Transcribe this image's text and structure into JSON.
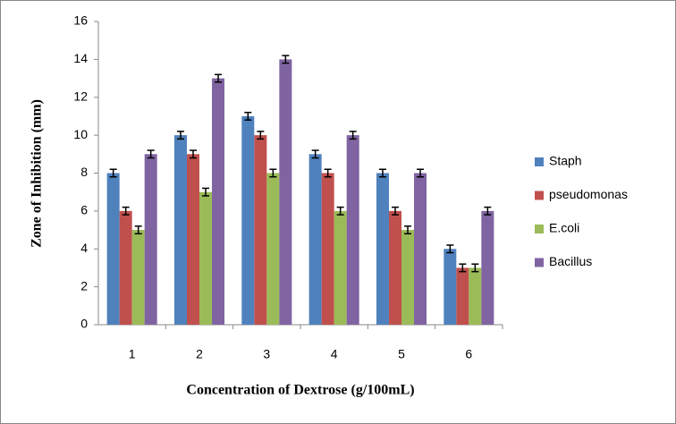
{
  "chart_data": {
    "type": "bar",
    "x_label": "Concentration of Dextrose (g/100mL)",
    "y_label": "Zone of Inhibition (mm)",
    "categories": [
      "1",
      "2",
      "3",
      "4",
      "5",
      "6"
    ],
    "series": [
      {
        "name": "Staph",
        "color": "#4f81bd",
        "values": [
          8,
          10,
          11,
          9,
          8,
          4
        ],
        "errors": [
          0.2,
          0.2,
          0.2,
          0.2,
          0.2,
          0.2
        ]
      },
      {
        "name": "pseudomonas",
        "color": "#c0504d",
        "values": [
          6,
          9,
          10,
          8,
          6,
          3
        ],
        "errors": [
          0.2,
          0.2,
          0.2,
          0.2,
          0.2,
          0.2
        ]
      },
      {
        "name": "E.coli",
        "color": "#9bbb59",
        "values": [
          5,
          7,
          8,
          6,
          5,
          3
        ],
        "errors": [
          0.2,
          0.2,
          0.2,
          0.2,
          0.2,
          0.2
        ]
      },
      {
        "name": "Bacillus",
        "color": "#8064a2",
        "values": [
          9,
          13,
          14,
          10,
          8,
          6
        ],
        "errors": [
          0.2,
          0.2,
          0.2,
          0.2,
          0.2,
          0.2
        ]
      }
    ],
    "ylim": [
      0,
      16
    ],
    "yticks": [
      0,
      2,
      4,
      6,
      8,
      10,
      12,
      14,
      16
    ],
    "legend": "right"
  }
}
